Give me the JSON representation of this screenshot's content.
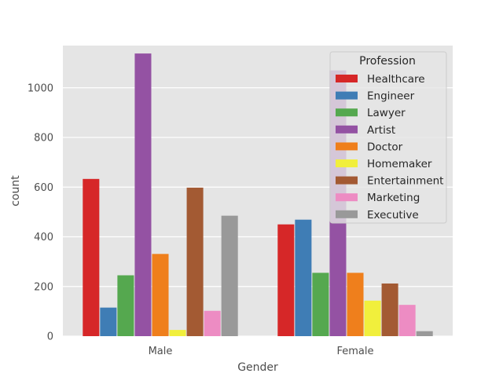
{
  "chart_data": {
    "type": "bar",
    "title": "",
    "xlabel": "Gender",
    "ylabel": "count",
    "ylim": [
      0,
      1170
    ],
    "yticks": [
      "0",
      "200",
      "400",
      "600",
      "800",
      "1000"
    ],
    "categories": [
      "Male",
      "Female"
    ],
    "legend_title": "Profession",
    "legend_position": "top-right",
    "grid": true,
    "series": [
      {
        "name": "Healthcare",
        "color": "#d62728",
        "values": [
          633,
          450
        ]
      },
      {
        "name": "Engineer",
        "color": "#3f7db5",
        "values": [
          115,
          469
        ]
      },
      {
        "name": "Lawyer",
        "color": "#55a84f",
        "values": [
          245,
          255
        ]
      },
      {
        "name": "Artist",
        "color": "#9452a3",
        "values": [
          1138,
          1070
        ]
      },
      {
        "name": "Doctor",
        "color": "#ef7f1c",
        "values": [
          331,
          255
        ]
      },
      {
        "name": "Homemaker",
        "color": "#f1ef3c",
        "values": [
          25,
          143
        ]
      },
      {
        "name": "Entertainment",
        "color": "#a35a33",
        "values": [
          598,
          212
        ]
      },
      {
        "name": "Marketing",
        "color": "#ed8cc3",
        "values": [
          102,
          126
        ]
      },
      {
        "name": "Executive",
        "color": "#999999",
        "values": [
          485,
          20
        ]
      }
    ]
  }
}
